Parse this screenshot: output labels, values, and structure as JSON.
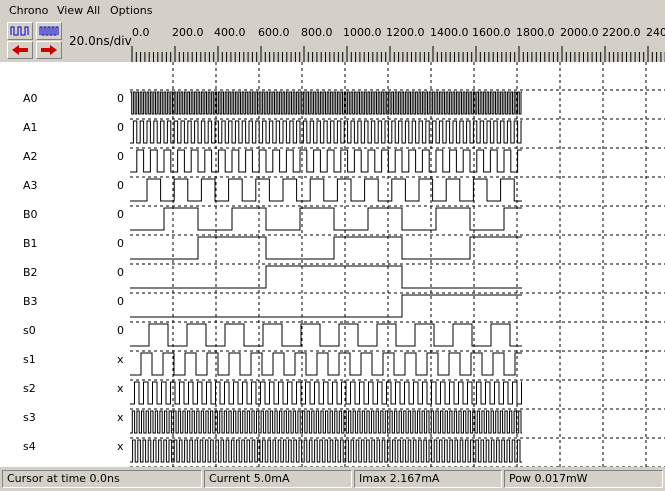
{
  "menu": [
    "Chrono",
    "View All",
    "Options"
  ],
  "toolbar": {
    "scale": "20.0ns/div",
    "ruler_labels": [
      "0.0",
      "200.0",
      "400.0",
      "600.0",
      "800.0",
      "1000.0",
      "1200.0",
      "1400.0",
      "1600.0",
      "1800.0",
      "2000.0",
      "2200.0",
      "240"
    ]
  },
  "signals": [
    {
      "name": "A0",
      "value": "0"
    },
    {
      "name": "A1",
      "value": "0"
    },
    {
      "name": "A2",
      "value": "0"
    },
    {
      "name": "A3",
      "value": "0"
    },
    {
      "name": "B0",
      "value": "0"
    },
    {
      "name": "B1",
      "value": "0"
    },
    {
      "name": "B2",
      "value": "0"
    },
    {
      "name": "B3",
      "value": "0"
    },
    {
      "name": "s0",
      "value": "0"
    },
    {
      "name": "s1",
      "value": "x"
    },
    {
      "name": "s2",
      "value": "x"
    },
    {
      "name": "s3",
      "value": "x"
    },
    {
      "name": "s4",
      "value": "x"
    }
  ],
  "status": {
    "cursor": "Cursor at time  0.0ns",
    "current": "Current  5.0mA",
    "imax": "Imax 2.167mA",
    "pow": "Pow 0.017mW"
  },
  "colors": {
    "chrome": "#d4d0c8",
    "arrow": "#cc0000",
    "icon": "#0000cc",
    "wave": "#000000"
  }
}
